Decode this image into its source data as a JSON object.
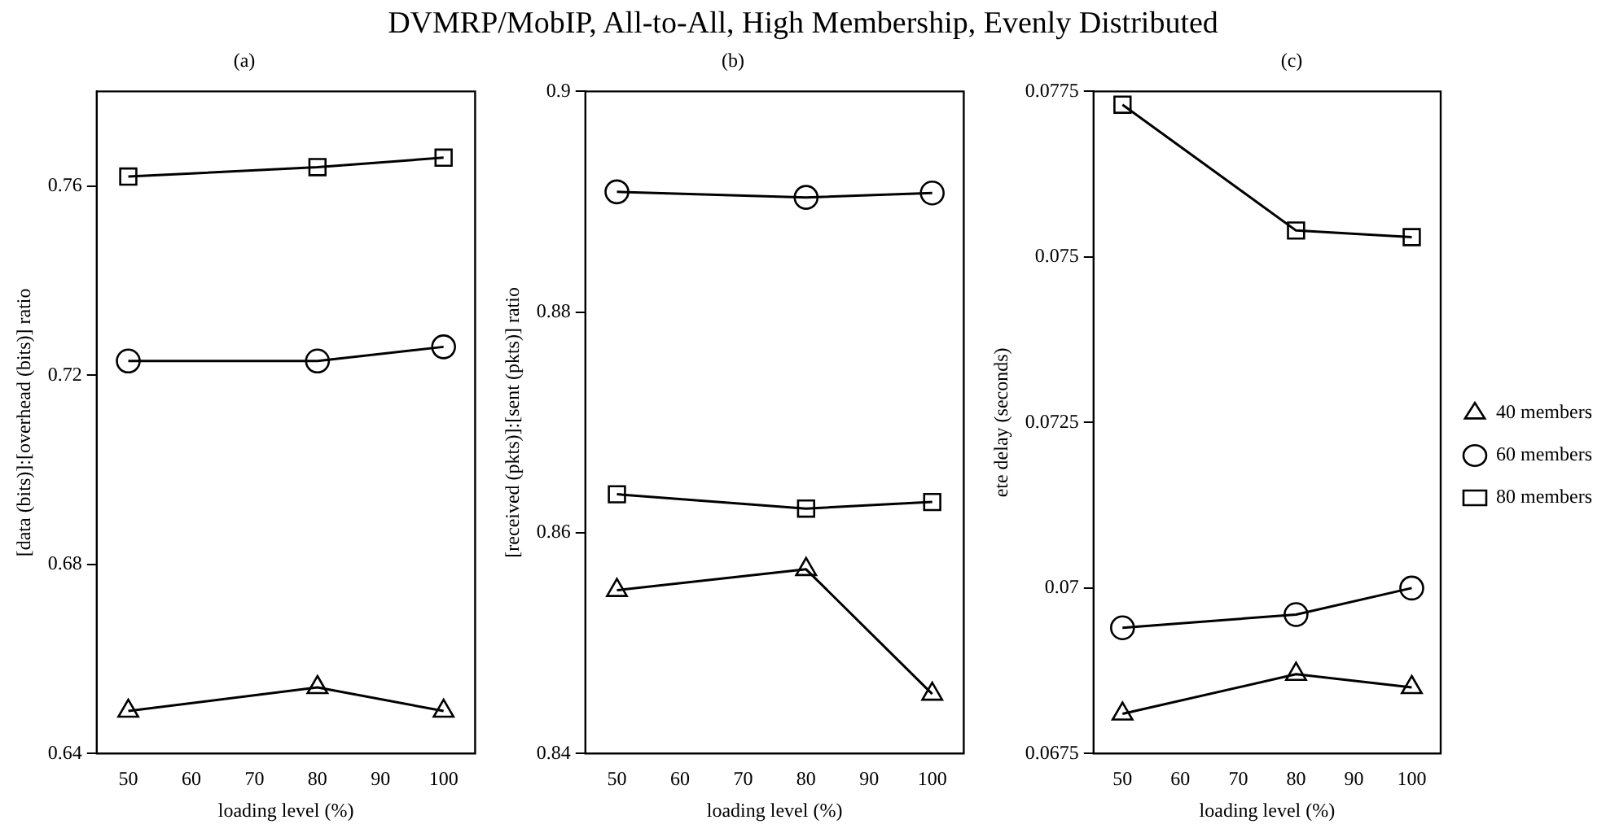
{
  "chart_data": [
    {
      "type": "line",
      "title": "DVMRP/MobIP, All-to-All, High Membership, Evenly Distributed",
      "subtitle": "(a)",
      "xlabel": "loading level (%)",
      "ylabel": "[data (bits)]:[overhead (bits)] ratio",
      "x": [
        50,
        80,
        100
      ],
      "xlim": [
        45,
        105
      ],
      "xticks": [
        50,
        60,
        70,
        80,
        90,
        100
      ],
      "ylim": [
        0.64,
        0.78
      ],
      "yticks": [
        0.64,
        0.68,
        0.72,
        0.76
      ],
      "grid": false,
      "legend": false,
      "series": [
        {
          "color": "#000000",
          "marker": "triangle",
          "values": [
            0.649,
            0.654,
            0.649
          ]
        },
        {
          "color": "#000000",
          "marker": "circle",
          "values": [
            0.723,
            0.723,
            0.726
          ]
        },
        {
          "color": "#000000",
          "marker": "square",
          "values": [
            0.762,
            0.764,
            0.766
          ]
        }
      ]
    },
    {
      "type": "line",
      "subtitle": "(b)",
      "xlabel": "loading level (%)",
      "ylabel": "[received (pkts)]:[sent (pkts)] ratio",
      "x": [
        50,
        80,
        100
      ],
      "xlim": [
        45,
        105
      ],
      "xticks": [
        50,
        60,
        70,
        80,
        90,
        100
      ],
      "ylim": [
        0.84,
        0.9
      ],
      "yticks": [
        0.84,
        0.86,
        0.88,
        0.9
      ],
      "grid": false,
      "legend": false,
      "series": [
        {
          "color": "#000000",
          "marker": "triangle",
          "values": [
            0.8548,
            0.8567,
            0.8454
          ]
        },
        {
          "color": "#000000",
          "marker": "circle",
          "values": [
            0.8909,
            0.8904,
            0.8908
          ]
        },
        {
          "color": "#000000",
          "marker": "square",
          "values": [
            0.8635,
            0.8622,
            0.8628
          ]
        }
      ]
    },
    {
      "type": "line",
      "subtitle": "(c)",
      "xlabel": "loading level (%)",
      "ylabel": "ete delay (seconds)",
      "x": [
        50,
        80,
        100
      ],
      "xlim": [
        45,
        105
      ],
      "xticks": [
        50,
        60,
        70,
        80,
        90,
        100
      ],
      "ylim": [
        0.0675,
        0.0775
      ],
      "yticks": [
        0.0675,
        0.07,
        0.0725,
        0.075,
        0.0775
      ],
      "grid": false,
      "legend": "right",
      "series": [
        {
          "name": "40 members",
          "color": "#000000",
          "marker": "triangle",
          "values": [
            0.0681,
            0.0687,
            0.0685
          ]
        },
        {
          "name": "60 members",
          "color": "#000000",
          "marker": "circle",
          "values": [
            0.0694,
            0.0696,
            0.07
          ]
        },
        {
          "name": "80 members",
          "color": "#000000",
          "marker": "square",
          "values": [
            0.0773,
            0.0754,
            0.0753
          ]
        }
      ]
    }
  ]
}
